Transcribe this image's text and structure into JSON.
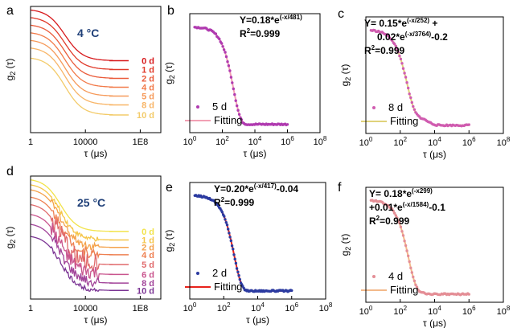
{
  "figure": {
    "background": "#ffffff"
  },
  "chart_data": [
    {
      "id": "a",
      "panel_label": "a",
      "type": "line",
      "xscale": "log",
      "xlim_log10": [
        0,
        9.5
      ],
      "ylim": [
        0,
        1
      ],
      "xticks": [
        {
          "pos_log10": 0,
          "label": "1"
        },
        {
          "pos_log10": 4,
          "label": "10000"
        },
        {
          "pos_log10": 8,
          "label": "1E8"
        }
      ],
      "xlabel": "τ (μs)",
      "ylabel": "g2 (τ)",
      "ylabel_main": "g",
      "ylabel_sub": "2",
      "ylabel_rest": " (τ)",
      "annotation": "4 °C",
      "annotation_color": "#1f3f78",
      "curve_model": {
        "decay_center_log10": 2.5,
        "decay_width": 0.65
      },
      "legend_placement": "right",
      "series": [
        {
          "name": "0 d",
          "color": "#d7191c",
          "plateau_high": 0.98,
          "plateau_low": 0.57
        },
        {
          "name": "1 d",
          "color": "#e03a2a",
          "plateau_high": 0.92,
          "plateau_low": 0.5
        },
        {
          "name": "2 d",
          "color": "#ea5b3a",
          "plateau_high": 0.86,
          "plateau_low": 0.43
        },
        {
          "name": "4 d",
          "color": "#f27b4a",
          "plateau_high": 0.8,
          "plateau_low": 0.36
        },
        {
          "name": "5 d",
          "color": "#f69a5a",
          "plateau_high": 0.74,
          "plateau_low": 0.29
        },
        {
          "name": "8 d",
          "color": "#f8b567",
          "plateau_high": 0.68,
          "plateau_low": 0.22
        },
        {
          "name": "10 d",
          "color": "#f3cb6a",
          "plateau_high": 0.6,
          "plateau_low": 0.14
        }
      ]
    },
    {
      "id": "b",
      "panel_label": "b",
      "type": "scatter",
      "xscale": "log",
      "xlim_log10": [
        0,
        8
      ],
      "ylim": [
        -0.1,
        0.25
      ],
      "xticks": [
        {
          "pos_log10": 0,
          "label": "10",
          "exp": "0"
        },
        {
          "pos_log10": 2,
          "label": "10",
          "exp": "2"
        },
        {
          "pos_log10": 4,
          "label": "10",
          "exp": "4"
        },
        {
          "pos_log10": 6,
          "label": "10",
          "exp": "6"
        },
        {
          "pos_log10": 8,
          "label": "10",
          "exp": "8"
        }
      ],
      "xlabel": "τ (μs)",
      "ylabel_main": "g",
      "ylabel_sub": "2",
      "ylabel_rest": " (τ)",
      "fit": {
        "amplitude": 0.18,
        "tau1": 481,
        "tau2": 0,
        "amplitude2": 0,
        "offset": 0
      },
      "equation_lines": [
        [
          {
            "t": "Y=0.18*e"
          },
          {
            "t": "(-x/481)",
            "sup": true
          }
        ],
        [
          {
            "t": "R"
          },
          {
            "t": "2",
            "sup": true
          },
          {
            "t": "=0.999"
          }
        ]
      ],
      "data_x_log10_range": [
        0.3,
        6.0
      ],
      "n_points": 80,
      "data_color": "#b03bb0",
      "fit_color": "#f2a0b4",
      "legend": [
        {
          "marker": "dot",
          "label": "5 d"
        },
        {
          "marker": "line",
          "label": "Fitting"
        }
      ]
    },
    {
      "id": "c",
      "panel_label": "c",
      "type": "scatter",
      "xscale": "log",
      "xlim_log10": [
        0,
        8
      ],
      "ylim": [
        -0.03,
        0.24
      ],
      "xticks": [
        {
          "pos_log10": 0,
          "label": "10",
          "exp": "0"
        },
        {
          "pos_log10": 2,
          "label": "10",
          "exp": "2"
        },
        {
          "pos_log10": 4,
          "label": "10",
          "exp": "4"
        },
        {
          "pos_log10": 6,
          "label": "10",
          "exp": "6"
        },
        {
          "pos_log10": 8,
          "label": "10",
          "exp": "8"
        }
      ],
      "xlabel": "τ (μs)",
      "ylabel_main": "g",
      "ylabel_sub": "2",
      "ylabel_rest": " (τ)",
      "fit": {
        "amplitude": 0.15,
        "tau1": 252,
        "amplitude2": 0.02,
        "tau2": 3764,
        "offset": -0.2
      },
      "equation_lines": [
        [
          {
            "t": "Y= 0.15*e"
          },
          {
            "t": "(-x/252)",
            "sup": true
          },
          {
            "t": " +"
          }
        ],
        [
          {
            "t": "0.02*e"
          },
          {
            "t": "(-x/3764)",
            "sup": true
          },
          {
            "t": "-0.2"
          }
        ],
        [
          {
            "t": "R"
          },
          {
            "t": "2",
            "sup": true
          },
          {
            "t": "=0.999"
          }
        ]
      ],
      "data_x_log10_range": [
        0.3,
        6.0
      ],
      "n_points": 80,
      "data_color": "#d05cb0",
      "fit_color": "#e0d27a",
      "legend": [
        {
          "marker": "dot",
          "label": "8 d"
        },
        {
          "marker": "line",
          "label": "Fitting"
        }
      ]
    },
    {
      "id": "d",
      "panel_label": "d",
      "type": "line",
      "xscale": "log",
      "xlim_log10": [
        0,
        9.5
      ],
      "ylim": [
        0,
        1
      ],
      "xticks": [
        {
          "pos_log10": 0,
          "label": "1"
        },
        {
          "pos_log10": 4,
          "label": "10000"
        },
        {
          "pos_log10": 8,
          "label": "1E8"
        }
      ],
      "xlabel": "τ (μs)",
      "ylabel_main": "g",
      "ylabel_sub": "2",
      "ylabel_rest": " (τ)",
      "annotation": "25 °C",
      "annotation_color": "#1f3f78",
      "curve_model": {
        "decay_center_log10": 2.2,
        "decay_width": 0.6
      },
      "legend_placement": "right",
      "series": [
        {
          "name": "0 d",
          "color": "#f2e34a",
          "plateau_high": 0.98,
          "plateau_low": 0.55,
          "noise": 0.0
        },
        {
          "name": "1 d",
          "color": "#f5c548",
          "plateau_high": 0.94,
          "plateau_low": 0.48,
          "noise": 0.01
        },
        {
          "name": "2 d",
          "color": "#f4a24c",
          "plateau_high": 0.9,
          "plateau_low": 0.42,
          "noise": 0.015
        },
        {
          "name": "4 d",
          "color": "#ee8052",
          "plateau_high": 0.84,
          "plateau_low": 0.36,
          "noise": 0.02
        },
        {
          "name": "5 d",
          "color": "#e06a6c",
          "plateau_high": 0.78,
          "plateau_low": 0.28,
          "noise": 0.04
        },
        {
          "name": "6 d",
          "color": "#c9558e",
          "plateau_high": 0.7,
          "plateau_low": 0.2,
          "noise": 0.03
        },
        {
          "name": "8 d",
          "color": "#a2459a",
          "plateau_high": 0.62,
          "plateau_low": 0.13,
          "noise": 0.02
        },
        {
          "name": "10 d",
          "color": "#7b3494",
          "plateau_high": 0.52,
          "plateau_low": 0.07,
          "noise": 0.01
        }
      ]
    },
    {
      "id": "e",
      "panel_label": "e",
      "type": "scatter",
      "xscale": "log",
      "xlim_log10": [
        0,
        8
      ],
      "ylim": [
        -0.08,
        0.24
      ],
      "xticks": [
        {
          "pos_log10": 0,
          "label": "10",
          "exp": "0"
        },
        {
          "pos_log10": 2,
          "label": "10",
          "exp": "2"
        },
        {
          "pos_log10": 4,
          "label": "10",
          "exp": "4"
        },
        {
          "pos_log10": 6,
          "label": "10",
          "exp": "6"
        },
        {
          "pos_log10": 8,
          "label": "10",
          "exp": "8"
        }
      ],
      "xlabel": "τ (μs)",
      "ylabel_main": "g",
      "ylabel_sub": "2",
      "ylabel_rest": " (τ)",
      "fit": {
        "amplitude": 0.2,
        "tau1": 417,
        "tau2": 0,
        "amplitude2": 0,
        "offset": -0.04
      },
      "equation_lines": [
        [
          {
            "t": "Y=0.20*e"
          },
          {
            "t": "(-x/417)",
            "sup": true
          },
          {
            "t": "-0.04"
          }
        ],
        [
          {
            "t": "R"
          },
          {
            "t": "2",
            "sup": true
          },
          {
            "t": "=0.999"
          }
        ]
      ],
      "data_x_log10_range": [
        0.3,
        6.0
      ],
      "n_points": 100,
      "data_color": "#2b3aa0",
      "fit_color": "#e8221c",
      "legend": [
        {
          "marker": "dot",
          "label": "2 d"
        },
        {
          "marker": "line",
          "label": "Fitting"
        }
      ]
    },
    {
      "id": "f",
      "panel_label": "f",
      "type": "scatter",
      "xscale": "log",
      "xlim_log10": [
        0,
        8
      ],
      "ylim": [
        -0.12,
        0.22
      ],
      "xticks": [
        {
          "pos_log10": 0,
          "label": "10",
          "exp": "0"
        },
        {
          "pos_log10": 2,
          "label": "10",
          "exp": "2"
        },
        {
          "pos_log10": 4,
          "label": "10",
          "exp": "4"
        },
        {
          "pos_log10": 6,
          "label": "10",
          "exp": "6"
        },
        {
          "pos_log10": 8,
          "label": "10",
          "exp": "8"
        }
      ],
      "xlabel": "τ (μs)",
      "ylabel_main": "g",
      "ylabel_sub": "2",
      "ylabel_rest": " (τ)",
      "fit": {
        "amplitude": 0.18,
        "tau1": 299,
        "amplitude2": 0.01,
        "tau2": 1584,
        "offset": -0.1
      },
      "equation_lines": [
        [
          {
            "t": "Y= 0.18*e"
          },
          {
            "t": "(-x299)",
            "sup": true
          }
        ],
        [
          {
            "t": "+0.01*e"
          },
          {
            "t": "(-x/1584)",
            "sup": true
          },
          {
            "t": "-0.1"
          }
        ],
        [
          {
            "t": "R"
          },
          {
            "t": "2",
            "sup": true
          },
          {
            "t": "=0.999"
          }
        ]
      ],
      "data_x_log10_range": [
        0.3,
        6.0
      ],
      "n_points": 80,
      "data_color": "#e48e96",
      "fit_color": "#f3b98a",
      "legend": [
        {
          "marker": "dot",
          "label": "4 d"
        },
        {
          "marker": "line",
          "label": "Fitting"
        }
      ]
    }
  ]
}
